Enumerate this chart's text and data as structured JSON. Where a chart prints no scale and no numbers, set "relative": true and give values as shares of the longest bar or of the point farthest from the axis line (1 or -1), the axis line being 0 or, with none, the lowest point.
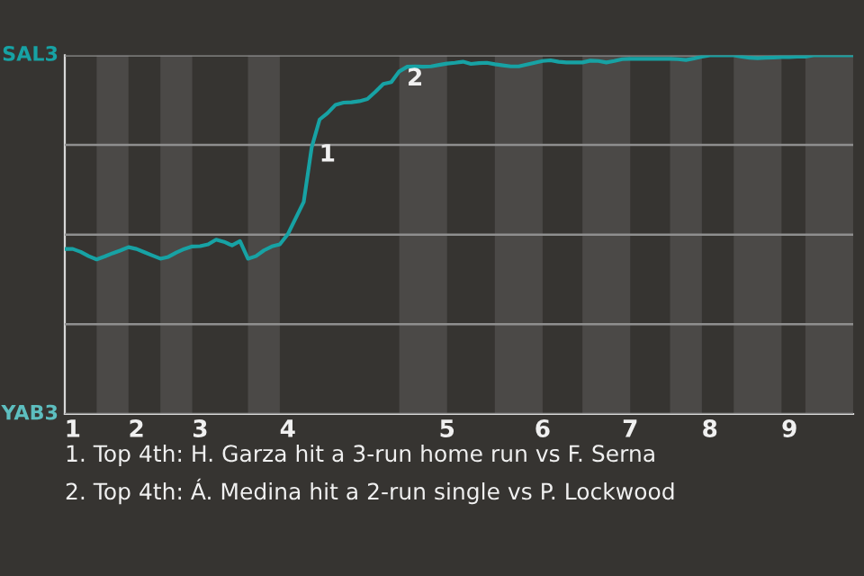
{
  "chart_data": {
    "type": "line",
    "relative": true,
    "categories": [
      null,
      "1",
      null,
      null,
      null,
      null,
      null,
      null,
      null,
      "2",
      null,
      null,
      null,
      null,
      null,
      null,
      null,
      "3",
      null,
      null,
      null,
      null,
      null,
      null,
      null,
      null,
      null,
      null,
      "4",
      null,
      null,
      null,
      null,
      null,
      null,
      null,
      null,
      null,
      null,
      null,
      null,
      null,
      null,
      null,
      null,
      null,
      null,
      null,
      "5",
      null,
      null,
      null,
      null,
      null,
      null,
      null,
      null,
      null,
      null,
      null,
      "6",
      null,
      null,
      null,
      null,
      null,
      null,
      null,
      null,
      null,
      null,
      "7",
      null,
      null,
      null,
      null,
      null,
      null,
      null,
      null,
      null,
      "8",
      null,
      null,
      null,
      null,
      null,
      null,
      null,
      null,
      null,
      "9",
      null,
      null,
      null,
      null,
      null,
      null,
      null,
      null
    ],
    "series": [
      {
        "color": "#17a2a4",
        "values": [
          0.46,
          0.46,
          0.452,
          0.44,
          0.431,
          0.439,
          0.448,
          0.456,
          0.465,
          0.46,
          0.451,
          0.442,
          0.433,
          0.438,
          0.45,
          0.46,
          0.467,
          0.468,
          0.473,
          0.486,
          0.48,
          0.47,
          0.482,
          0.433,
          0.44,
          0.456,
          0.467,
          0.473,
          0.501,
          0.546,
          0.591,
          0.743,
          0.821,
          0.839,
          0.862,
          0.868,
          0.869,
          0.872,
          0.878,
          0.898,
          0.92,
          0.925,
          0.955,
          0.968,
          0.969,
          0.968,
          0.969,
          0.973,
          0.977,
          0.979,
          0.982,
          0.976,
          0.978,
          0.979,
          0.975,
          0.972,
          0.969,
          0.969,
          0.974,
          0.979,
          0.984,
          0.986,
          0.982,
          0.98,
          0.98,
          0.98,
          0.985,
          0.984,
          0.98,
          0.984,
          0.989,
          0.99,
          0.99,
          0.99,
          0.99,
          0.99,
          0.99,
          0.989,
          0.987,
          0.991,
          0.996,
          1,
          1,
          1,
          1,
          0.996,
          0.993,
          0.992,
          0.993,
          0.994,
          0.995,
          0.995,
          0.996,
          0.996,
          1,
          1,
          1,
          1,
          1,
          1
        ],
        "name": null
      }
    ],
    "grid": "y",
    "annotations": [
      "SAL3",
      "YAB3",
      "1",
      "2",
      "1. Top 4th: H. Garza hit a 3-run home run vs F. Serna",
      "2. Top 4th: Á. Medina hit a 2-run single vs P. Lockwood"
    ]
  }
}
